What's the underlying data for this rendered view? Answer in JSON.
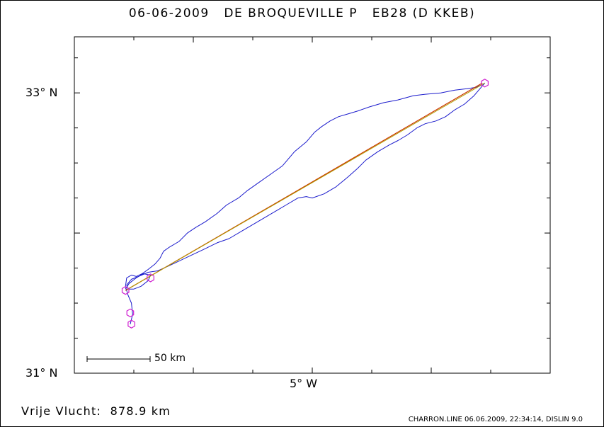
{
  "header": {
    "date": "06-06-2009",
    "pilot": "DE BROQUEVILLE P",
    "glider": "EB28 (D KKEB)"
  },
  "footer": {
    "summary_label": "Vrije Vlucht:",
    "summary_value": "878.9 km",
    "software": "CHARRON.LINE 06.06.2009, 22:34:14, DISLIN 9.0"
  },
  "colors": {
    "track": "#1a1acc",
    "task_line": "#cc3300",
    "task_line_2": "#b0a000",
    "turnpoint": "#d020d0",
    "axis": "#000000"
  },
  "chart_data": {
    "type": "line",
    "title": "06-06-2009   DE BROQUEVILLE P   EB28 (D KKEB)",
    "xlim": [
      -7.0,
      -3.0
    ],
    "ylim": [
      31.0,
      33.4
    ],
    "x_ticks": [
      {
        "value": -5.0,
        "label": "5° W"
      }
    ],
    "y_ticks": [
      {
        "value": 31.0,
        "label": "31° N"
      },
      {
        "value": 33.0,
        "label": "33° N"
      }
    ],
    "grid": false,
    "scale_bar": {
      "label": "50 km",
      "length_km": 50
    },
    "series": [
      {
        "role": "gps track",
        "x": [
          -6.53,
          -6.51,
          -6.52,
          -6.55,
          -6.57,
          -6.56,
          -6.52,
          -6.48,
          -6.43,
          -6.38,
          -6.32,
          -6.28,
          -6.25,
          -6.2,
          -6.12,
          -6.05,
          -5.98,
          -5.9,
          -5.8,
          -5.72,
          -5.62,
          -5.55,
          -5.45,
          -5.35,
          -5.25,
          -5.15,
          -5.05,
          -4.98,
          -4.92,
          -4.85,
          -4.78,
          -4.7,
          -4.62,
          -4.52,
          -4.4,
          -4.28,
          -4.15,
          -4.05,
          -3.92,
          -3.8,
          -3.7,
          -3.62,
          -3.57,
          -3.55,
          -3.58,
          -3.64,
          -3.72,
          -3.8,
          -3.88,
          -3.96,
          -4.05,
          -4.12,
          -4.2,
          -4.28,
          -4.35,
          -4.45,
          -4.55,
          -4.62,
          -4.7,
          -4.8,
          -4.9,
          -5.0,
          -5.05,
          -5.12,
          -5.22,
          -5.3,
          -5.38,
          -5.48,
          -5.58,
          -5.7,
          -5.8,
          -5.92,
          -6.02,
          -6.12,
          -6.22,
          -6.3,
          -6.38,
          -6.46,
          -6.52,
          -6.56,
          -6.55,
          -6.5,
          -6.44,
          -6.38,
          -6.36,
          -6.42,
          -6.48,
          -6.54,
          -6.57
        ],
        "y": [
          31.35,
          31.42,
          31.5,
          31.56,
          31.62,
          31.68,
          31.7,
          31.69,
          31.71,
          31.74,
          31.78,
          31.82,
          31.87,
          31.9,
          31.94,
          32.0,
          32.04,
          32.08,
          32.14,
          32.2,
          32.25,
          32.3,
          32.36,
          32.42,
          32.48,
          32.58,
          32.65,
          32.72,
          32.76,
          32.8,
          32.83,
          32.85,
          32.87,
          32.9,
          32.93,
          32.95,
          32.98,
          32.99,
          33.0,
          33.02,
          33.03,
          33.04,
          33.06,
          33.07,
          33.04,
          32.98,
          32.92,
          32.88,
          32.83,
          32.8,
          32.78,
          32.75,
          32.7,
          32.66,
          32.63,
          32.58,
          32.52,
          32.46,
          32.4,
          32.33,
          32.28,
          32.25,
          32.26,
          32.25,
          32.2,
          32.16,
          32.12,
          32.07,
          32.02,
          31.96,
          31.93,
          31.88,
          31.84,
          31.8,
          31.76,
          31.73,
          31.72,
          31.69,
          31.67,
          31.63,
          31.6,
          31.6,
          31.62,
          31.66,
          31.7,
          31.71,
          31.68,
          31.64,
          31.6
        ]
      },
      {
        "role": "task line",
        "x": [
          -6.57,
          -3.57
        ],
        "y": [
          31.59,
          33.07
        ]
      },
      {
        "role": "task line 2",
        "x": [
          -6.55,
          -3.55
        ],
        "y": [
          31.6,
          33.07
        ]
      }
    ],
    "turnpoints": [
      {
        "x": -6.57,
        "y": 31.59
      },
      {
        "x": -6.52,
        "y": 31.35
      },
      {
        "x": -6.53,
        "y": 31.43
      },
      {
        "x": -6.36,
        "y": 31.68
      },
      {
        "x": -3.55,
        "y": 33.07
      }
    ]
  }
}
